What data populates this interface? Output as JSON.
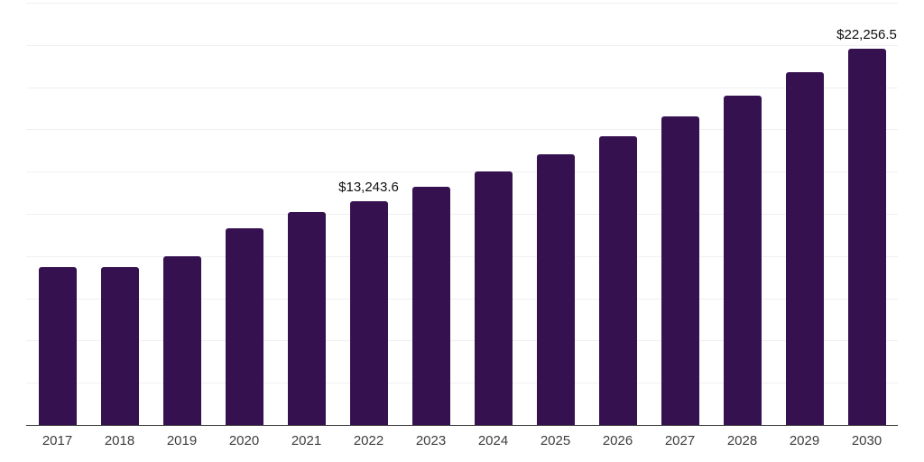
{
  "chart_data": {
    "type": "bar",
    "title": "",
    "xlabel": "",
    "ylabel": "",
    "categories": [
      "2017",
      "2018",
      "2019",
      "2020",
      "2021",
      "2022",
      "2023",
      "2024",
      "2025",
      "2026",
      "2027",
      "2028",
      "2029",
      "2030"
    ],
    "values": [
      9330,
      9360,
      9970,
      11650,
      12590,
      13243.6,
      14100,
      15020,
      16010,
      17080,
      18290,
      19480,
      20890,
      22256.5
    ],
    "ylim": [
      0,
      25000
    ],
    "gridline_interval": 2500,
    "grid": "on",
    "legend_position": "none",
    "y_axis_tick_labels_visible": false,
    "annotations": [
      {
        "category": "2022",
        "text": "$13,243.6"
      },
      {
        "category": "2030",
        "text": "$22,256.5"
      }
    ]
  },
  "colors": {
    "bar": "#36114F",
    "gridline": "#f0f0f0",
    "axis_line": "#424242",
    "tick_label": "#3d3d3d",
    "annotation_text": "#0f0f0f",
    "background": "#ffffff"
  }
}
